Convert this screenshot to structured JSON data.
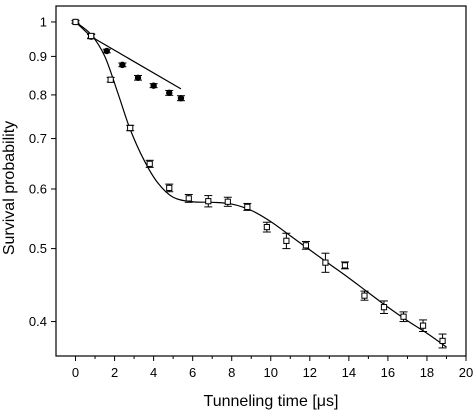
{
  "chart_data": {
    "type": "scatter",
    "xlabel": "Tunneling time [μs]",
    "ylabel": "Survival probability",
    "xlim": [
      -1,
      20
    ],
    "ylim": [
      0.36,
      1.05
    ],
    "yscale": "log",
    "grid": false,
    "legend": "none",
    "x_ticks": [
      0,
      2,
      4,
      6,
      8,
      10,
      12,
      14,
      16,
      18,
      20
    ],
    "y_ticks": [
      0.4,
      0.5,
      0.6,
      0.7,
      0.8,
      0.9,
      1
    ],
    "series": [
      {
        "marker": "filled-circle",
        "x": [
          0,
          0.8,
          1.6,
          2.4,
          3.2,
          4.0,
          4.8,
          5.4
        ],
        "y": [
          1.0,
          0.956,
          0.915,
          0.877,
          0.843,
          0.823,
          0.805,
          0.792
        ],
        "err": [
          0.004,
          0.006,
          0.005,
          0.005,
          0.006,
          0.005,
          0.006,
          0.006
        ]
      },
      {
        "marker": "open-square",
        "x": [
          0,
          0.8,
          1.8,
          2.8,
          3.8,
          4.8,
          5.8,
          6.8,
          7.8,
          8.8,
          9.8,
          10.8,
          11.8,
          12.8,
          13.8,
          14.8,
          15.8,
          16.8,
          17.8,
          18.8
        ],
        "y": [
          1.0,
          0.958,
          0.838,
          0.723,
          0.648,
          0.602,
          0.583,
          0.578,
          0.577,
          0.568,
          0.534,
          0.512,
          0.505,
          0.479,
          0.475,
          0.433,
          0.418,
          0.406,
          0.395,
          0.377
        ],
        "err": [
          0.004,
          0.006,
          0.006,
          0.006,
          0.007,
          0.007,
          0.007,
          0.01,
          0.008,
          0.006,
          0.008,
          0.012,
          0.006,
          0.014,
          0.005,
          0.006,
          0.008,
          0.006,
          0.007,
          0.008
        ]
      }
    ],
    "lines": [
      {
        "style": "straight",
        "x": [
          0,
          0.8,
          5.4
        ],
        "y": [
          1.0,
          0.956,
          0.815
        ]
      },
      {
        "style": "fit-curve",
        "x": [
          0,
          0.8,
          1.5,
          2.2,
          2.8,
          3.5,
          4.2,
          5.0,
          6.0,
          7.0,
          8.0,
          9.0,
          10.0,
          11.0,
          12.0,
          13.0,
          14.0,
          15.0,
          16.0,
          17.0,
          18.0,
          19.0
        ],
        "y": [
          1.0,
          0.962,
          0.9,
          0.8,
          0.72,
          0.656,
          0.612,
          0.585,
          0.577,
          0.576,
          0.573,
          0.562,
          0.543,
          0.52,
          0.498,
          0.477,
          0.457,
          0.437,
          0.418,
          0.401,
          0.386,
          0.37
        ]
      }
    ]
  }
}
